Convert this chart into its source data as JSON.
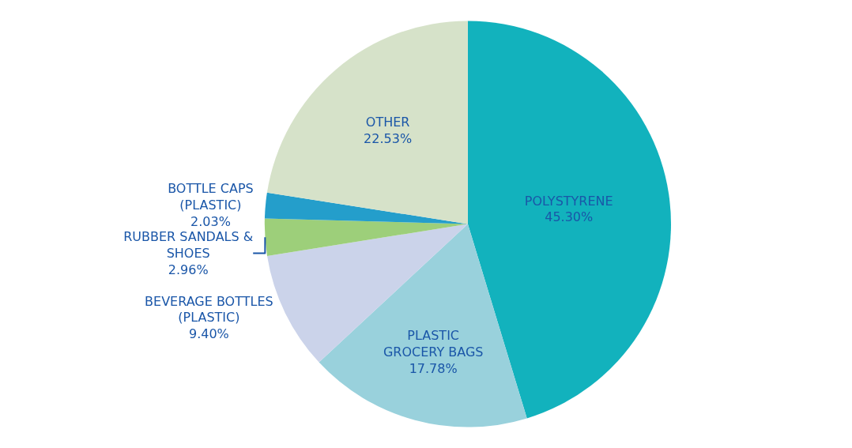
{
  "chart_data": {
    "type": "pie",
    "categories": [
      "POLYSTYRENE",
      "PLASTIC GROCERY BAGS",
      "BEVERAGE BOTTLES (PLASTIC)",
      "RUBBER SANDALS & SHOES",
      "BOTTLE CAPS (PLASTIC)",
      "OTHER"
    ],
    "values": [
      45.3,
      17.78,
      9.4,
      2.96,
      2.03,
      22.53
    ],
    "colors": [
      "#12b2bd",
      "#99d1dc",
      "#cbd3ea",
      "#9dcf7a",
      "#249ecb",
      "#d6e2c9"
    ],
    "value_labels": [
      "45.30%",
      "17.78%",
      "9.40%",
      "2.96%",
      "2.03%",
      "22.53%"
    ],
    "legend": false
  }
}
